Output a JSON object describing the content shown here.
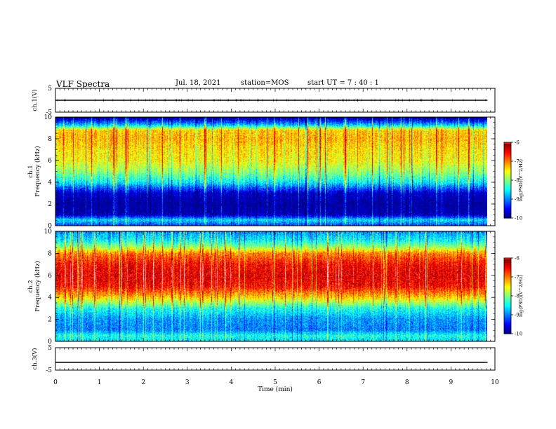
{
  "header": {
    "title": "VLF Spectra",
    "date": "Jul. 18, 2021",
    "station": "station=MOS",
    "start": "start UT = 7 : 40 : 1"
  },
  "chart_data": [
    {
      "type": "line",
      "panel": "ch1-voltage",
      "ylabel": "ch.1(V)",
      "ylim": [
        -5,
        5
      ],
      "yticks": [
        5,
        -5
      ],
      "xlim": [
        0,
        10
      ],
      "series": [
        {
          "x": [
            0,
            9.83
          ],
          "values": [
            0,
            0
          ]
        }
      ]
    },
    {
      "type": "heatmap",
      "panel": "ch1-spectrogram",
      "ylabel": "ch.1 Frequency (kHz)",
      "ylim": [
        0,
        10
      ],
      "yticks": [
        0,
        2,
        4,
        6,
        8,
        10
      ],
      "xlim": [
        0,
        10
      ],
      "data_end_min": 9.83,
      "colorbar": {
        "label": "log(PSD)(V^2/Hz)",
        "range": [
          -10,
          -6
        ],
        "ticks": [
          -6,
          -7,
          -8,
          -9,
          -10
        ]
      },
      "profile_khz": [
        0,
        0.5,
        1,
        2,
        3,
        3.5,
        4,
        5,
        6,
        7,
        8,
        8.8,
        9.3,
        9.8,
        10
      ],
      "profile_log_psd": [
        -9.2,
        -8.6,
        -9.8,
        -9.9,
        -9.7,
        -9.1,
        -8.5,
        -7.9,
        -7.5,
        -7.4,
        -7.2,
        -7.3,
        -8.7,
        -9.6,
        -10
      ]
    },
    {
      "type": "heatmap",
      "panel": "ch2-spectrogram",
      "ylabel": "ch.2 Frequency (kHz)",
      "ylim": [
        0,
        10
      ],
      "yticks": [
        0,
        2,
        4,
        6,
        8,
        10
      ],
      "xlim": [
        0,
        10
      ],
      "data_end_min": 9.83,
      "colorbar": {
        "label": "log(PSD)(V^2/Hz)",
        "range": [
          -10,
          -6
        ],
        "ticks": [
          -6,
          -7,
          -8,
          -9,
          -10
        ]
      },
      "profile_khz": [
        0,
        0.5,
        1,
        2,
        3,
        4,
        5,
        6,
        7,
        8,
        8.6,
        9.2,
        10
      ],
      "profile_log_psd": [
        -8.6,
        -8.4,
        -9.0,
        -8.9,
        -8.4,
        -7.3,
        -6.5,
        -6.3,
        -6.5,
        -7.0,
        -7.9,
        -8.5,
        -8.9
      ]
    },
    {
      "type": "line",
      "panel": "ch3-voltage",
      "ylabel": "ch.3(V)",
      "ylim": [
        -5,
        5
      ],
      "yticks": [
        5,
        -5
      ],
      "xlim": [
        0,
        10
      ],
      "series": [
        {
          "x": [
            0,
            9.83
          ],
          "values": [
            -1.5,
            -1.5
          ]
        }
      ]
    }
  ],
  "x_axis": {
    "label": "Time (min)",
    "ticks": [
      0,
      1,
      2,
      3,
      4,
      5,
      6,
      7,
      8,
      9,
      10
    ]
  }
}
